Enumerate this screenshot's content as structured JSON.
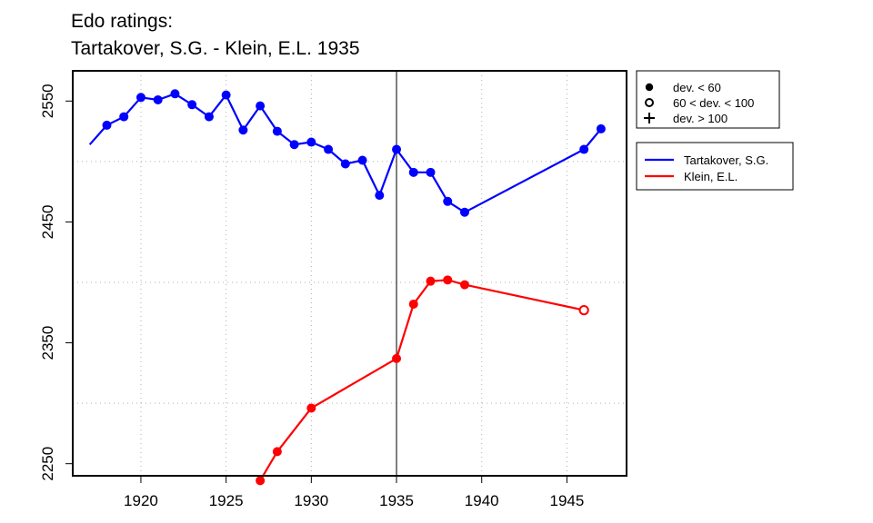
{
  "chart_data": {
    "type": "line",
    "title_lines": [
      "Edo ratings:",
      "Tartakover, S.G. - Klein, E.L. 1935"
    ],
    "xlabel": "",
    "ylabel": "",
    "xlim": [
      1916,
      1948.5
    ],
    "ylim": [
      2240,
      2575
    ],
    "x_ticks": [
      1920,
      1925,
      1930,
      1935,
      1940,
      1945
    ],
    "y_ticks": [
      2250,
      2350,
      2450,
      2550
    ],
    "y_grid": [
      2300,
      2400,
      2500
    ],
    "grid": true,
    "reference_line_x": 1935,
    "marker_legend": {
      "placement": "top-right",
      "entries": [
        {
          "symbol": "filled-circle",
          "label": "dev. < 60"
        },
        {
          "symbol": "open-circle",
          "label": "60 < dev. < 100"
        },
        {
          "symbol": "plus",
          "label": "dev. > 100"
        }
      ]
    },
    "series_legend": {
      "placement": "right",
      "entries": [
        {
          "label": "Tartakover, S.G.",
          "color": "#0000ff"
        },
        {
          "label": "Klein, E.L.",
          "color": "#ff0000"
        }
      ]
    },
    "series": [
      {
        "name": "Tartakover, S.G.",
        "color": "#0000ff",
        "points": [
          {
            "x": 1917,
            "y": 2514,
            "marker": "none"
          },
          {
            "x": 1918,
            "y": 2530,
            "marker": "filled"
          },
          {
            "x": 1919,
            "y": 2537,
            "marker": "filled"
          },
          {
            "x": 1920,
            "y": 2553,
            "marker": "filled"
          },
          {
            "x": 1921,
            "y": 2551,
            "marker": "filled"
          },
          {
            "x": 1922,
            "y": 2556,
            "marker": "filled"
          },
          {
            "x": 1923,
            "y": 2547,
            "marker": "filled"
          },
          {
            "x": 1924,
            "y": 2537,
            "marker": "filled"
          },
          {
            "x": 1925,
            "y": 2555,
            "marker": "filled"
          },
          {
            "x": 1926,
            "y": 2526,
            "marker": "filled"
          },
          {
            "x": 1927,
            "y": 2546,
            "marker": "filled"
          },
          {
            "x": 1928,
            "y": 2525,
            "marker": "filled"
          },
          {
            "x": 1929,
            "y": 2514,
            "marker": "filled"
          },
          {
            "x": 1930,
            "y": 2516,
            "marker": "filled"
          },
          {
            "x": 1931,
            "y": 2510,
            "marker": "filled"
          },
          {
            "x": 1932,
            "y": 2498,
            "marker": "filled"
          },
          {
            "x": 1933,
            "y": 2501,
            "marker": "filled"
          },
          {
            "x": 1934,
            "y": 2472,
            "marker": "filled"
          },
          {
            "x": 1935,
            "y": 2510,
            "marker": "filled"
          },
          {
            "x": 1936,
            "y": 2491,
            "marker": "filled"
          },
          {
            "x": 1937,
            "y": 2491,
            "marker": "filled"
          },
          {
            "x": 1938,
            "y": 2467,
            "marker": "filled"
          },
          {
            "x": 1939,
            "y": 2458,
            "marker": "filled"
          },
          {
            "x": 1946,
            "y": 2510,
            "marker": "filled"
          },
          {
            "x": 1947,
            "y": 2527,
            "marker": "filled"
          }
        ]
      },
      {
        "name": "Klein, E.L.",
        "color": "#ff0000",
        "points": [
          {
            "x": 1927,
            "y": 2236,
            "marker": "filled"
          },
          {
            "x": 1928,
            "y": 2260,
            "marker": "filled"
          },
          {
            "x": 1930,
            "y": 2296,
            "marker": "filled"
          },
          {
            "x": 1935,
            "y": 2337,
            "marker": "filled"
          },
          {
            "x": 1936,
            "y": 2382,
            "marker": "filled"
          },
          {
            "x": 1937,
            "y": 2401,
            "marker": "filled"
          },
          {
            "x": 1938,
            "y": 2402,
            "marker": "filled"
          },
          {
            "x": 1939,
            "y": 2398,
            "marker": "filled"
          },
          {
            "x": 1946,
            "y": 2377,
            "marker": "open"
          }
        ]
      }
    ]
  }
}
